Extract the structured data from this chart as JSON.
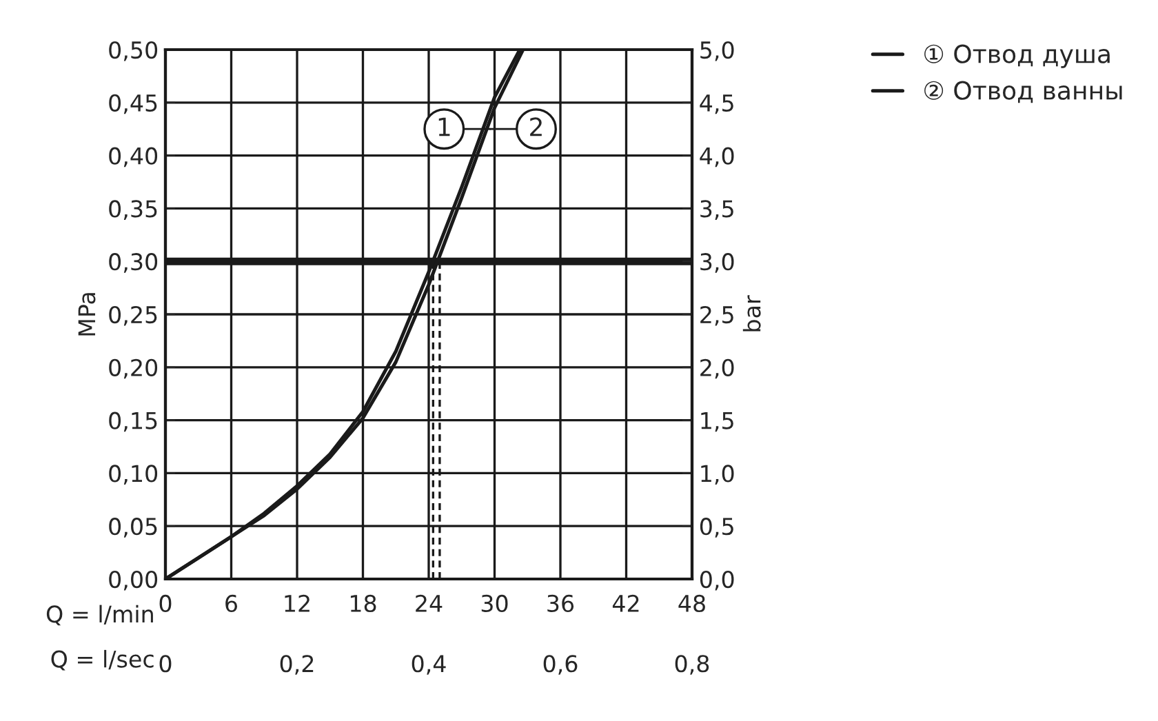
{
  "chart_data": {
    "type": "line",
    "xlabel": "Q = l/min",
    "x2label": "Q = l/sec",
    "ylabel": "MPa",
    "y2label": "bar",
    "series": [
      {
        "name": "① Отвод душа",
        "color": "#1a1a1a",
        "x": [
          0,
          3,
          6,
          9,
          12,
          15,
          18,
          21,
          24,
          27,
          30,
          32.3
        ],
        "values": [
          0,
          0.02,
          0.04,
          0.062,
          0.088,
          0.118,
          0.158,
          0.215,
          0.29,
          0.37,
          0.455,
          0.5
        ]
      },
      {
        "name": "② Отвод ванны",
        "color": "#1a1a1a",
        "x": [
          0,
          3,
          6,
          9,
          12,
          15,
          18,
          21,
          24,
          27,
          30,
          32.6
        ],
        "values": [
          0,
          0.02,
          0.04,
          0.06,
          0.085,
          0.115,
          0.152,
          0.205,
          0.278,
          0.36,
          0.445,
          0.5
        ]
      }
    ],
    "xlim": [
      0,
      48
    ],
    "xticks": [
      0,
      6,
      12,
      18,
      24,
      30,
      36,
      42,
      48
    ],
    "x2lim": [
      0,
      0.8
    ],
    "x2ticks": [
      0,
      {
        "value": 0.2,
        "label": "0,2"
      },
      {
        "value": 0.4,
        "label": "0,4"
      },
      {
        "value": 0.6,
        "label": "0,6"
      },
      {
        "value": 0.8,
        "label": "0,8"
      }
    ],
    "ylim": [
      0,
      0.5
    ],
    "yticks": [
      {
        "value": 0,
        "label": "0,00"
      },
      {
        "value": 0.05,
        "label": "0,05"
      },
      {
        "value": 0.1,
        "label": "0,10"
      },
      {
        "value": 0.15,
        "label": "0,15"
      },
      {
        "value": 0.2,
        "label": "0,20"
      },
      {
        "value": 0.25,
        "label": "0,25"
      },
      {
        "value": 0.3,
        "label": "0,30"
      },
      {
        "value": 0.35,
        "label": "0,35"
      },
      {
        "value": 0.4,
        "label": "0,40"
      },
      {
        "value": 0.45,
        "label": "0,45"
      },
      {
        "value": 0.5,
        "label": "0,50"
      }
    ],
    "y2lim": [
      0,
      5
    ],
    "y2ticks": [
      {
        "value": 0,
        "label": "0,0"
      },
      {
        "value": 0.5,
        "label": "0,5"
      },
      {
        "value": 1,
        "label": "1,0"
      },
      {
        "value": 1.5,
        "label": "1,5"
      },
      {
        "value": 2,
        "label": "2,0"
      },
      {
        "value": 2.5,
        "label": "2,5"
      },
      {
        "value": 3,
        "label": "3,0"
      },
      {
        "value": 3.5,
        "label": "3,5"
      },
      {
        "value": 4,
        "label": "4,0"
      },
      {
        "value": 4.5,
        "label": "4,5"
      },
      {
        "value": 5,
        "label": "5,0"
      }
    ],
    "ref_lines": [
      {
        "axis": "y",
        "value": 0.3,
        "color": "#1a1a1a",
        "line_style": "solid"
      },
      {
        "axis": "x",
        "value": 24.4,
        "color": "#1a1a1a",
        "line_style": "dashed"
      },
      {
        "axis": "x",
        "value": 25,
        "color": "#1a1a1a",
        "line_style": "dashed"
      }
    ],
    "annotations": [
      {
        "text": "1",
        "x": 29.6,
        "y": 0.425
      },
      {
        "text": "2",
        "x": 29.6,
        "y": 0.425
      }
    ],
    "grid": true,
    "legend": "top right",
    "marker": "none",
    "line_style": "solid"
  }
}
